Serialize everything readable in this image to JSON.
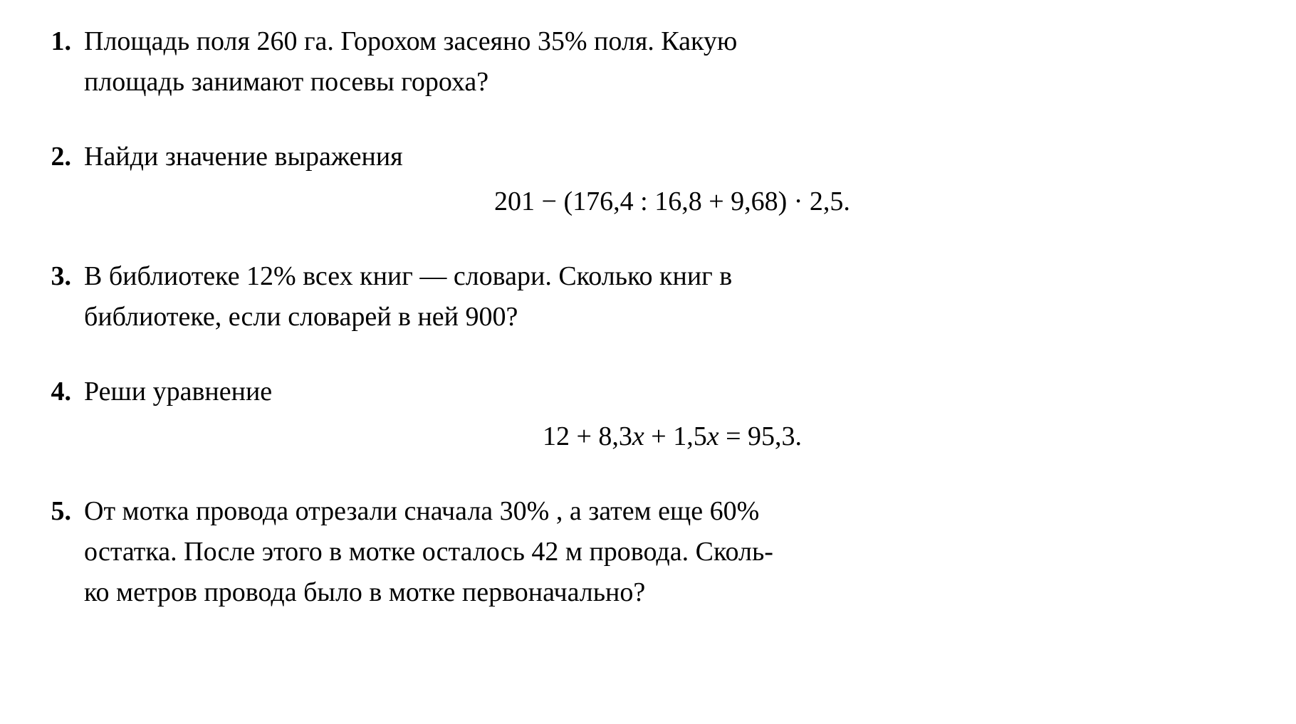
{
  "font": {
    "family": "Times New Roman",
    "size_pt": 38,
    "color": "#000000",
    "background": "#ffffff",
    "number_weight": 700
  },
  "problems": [
    {
      "number": "1.",
      "line1": "Площадь поля 260 га. Горохом засеяно 35% поля. Какую",
      "line2": "площадь занимают посевы гороха?"
    },
    {
      "number": "2.",
      "line1": "Найди значение выражения",
      "formula": "201 − (176,4 : 16,8 + 9,68) · 2,5."
    },
    {
      "number": "3.",
      "line1": "В библиотеке 12% всех книг — словари. Сколько книг в",
      "line2": "библиотеке, если словарей в ней 900?"
    },
    {
      "number": "4.",
      "line1": "Реши уравнение",
      "formula_pre": "12 + 8,3",
      "formula_var1": "x",
      "formula_mid": " + 1,5",
      "formula_var2": "x",
      "formula_post": " = 95,3."
    },
    {
      "number": "5.",
      "line1": "От мотка провода отрезали сначала 30% , а затем еще 60%",
      "line2": "остатка. После этого в мотке осталось 42 м провода. Сколь-",
      "line3": "ко метров провода было в мотке первоначально?"
    }
  ]
}
